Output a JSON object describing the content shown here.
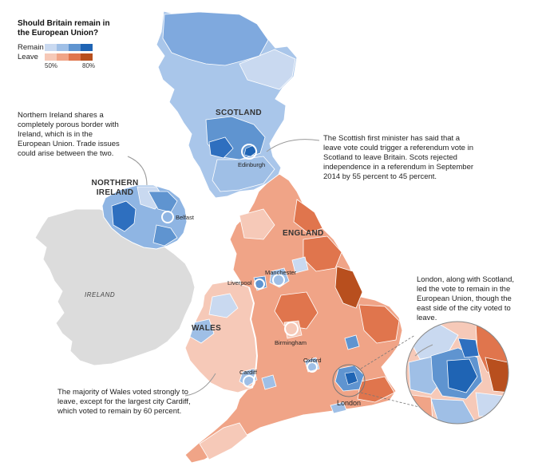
{
  "legend": {
    "title": "Should Britain remain in the European Union?",
    "remain_label": "Remain",
    "leave_label": "Leave",
    "tick_low": "50%",
    "tick_high": "80%",
    "remain_colors": [
      "#c9d9f0",
      "#9fbfe6",
      "#5f94d0",
      "#1f64b4"
    ],
    "leave_colors": [
      "#f6c9b8",
      "#f0a487",
      "#e0754d",
      "#b84f1e"
    ]
  },
  "regions": {
    "scotland": "SCOTLAND",
    "northern_ireland": "NORTHERN IRELAND",
    "england": "ENGLAND",
    "wales": "WALES",
    "ireland": "IRELAND"
  },
  "cities": {
    "edinburgh": "Edinburgh",
    "belfast": "Belfast",
    "manchester": "Manchester",
    "liverpool": "Liverpool",
    "birmingham": "Birmingham",
    "oxford": "Oxford",
    "cardiff": "Cardiff",
    "london": "London"
  },
  "annotations": {
    "northern_ireland": "Northern Ireland shares a completely porous border with Ireland, which is in the European Union. Trade issues could arise between the two.",
    "scotland": "The Scottish first minister has said that a leave vote could trigger a referendum vote in Scotland to leave Britain. Scots rejected independence in a referendum in September 2014 by 55 percent to 45 percent.",
    "london": "London, along with Scotland, led the vote to remain in the European Union, though the east side of the city voted to leave.",
    "wales": "The majority of Wales voted strongly to leave, except for the largest city Cardiff, which voted to remain by 60 percent."
  }
}
